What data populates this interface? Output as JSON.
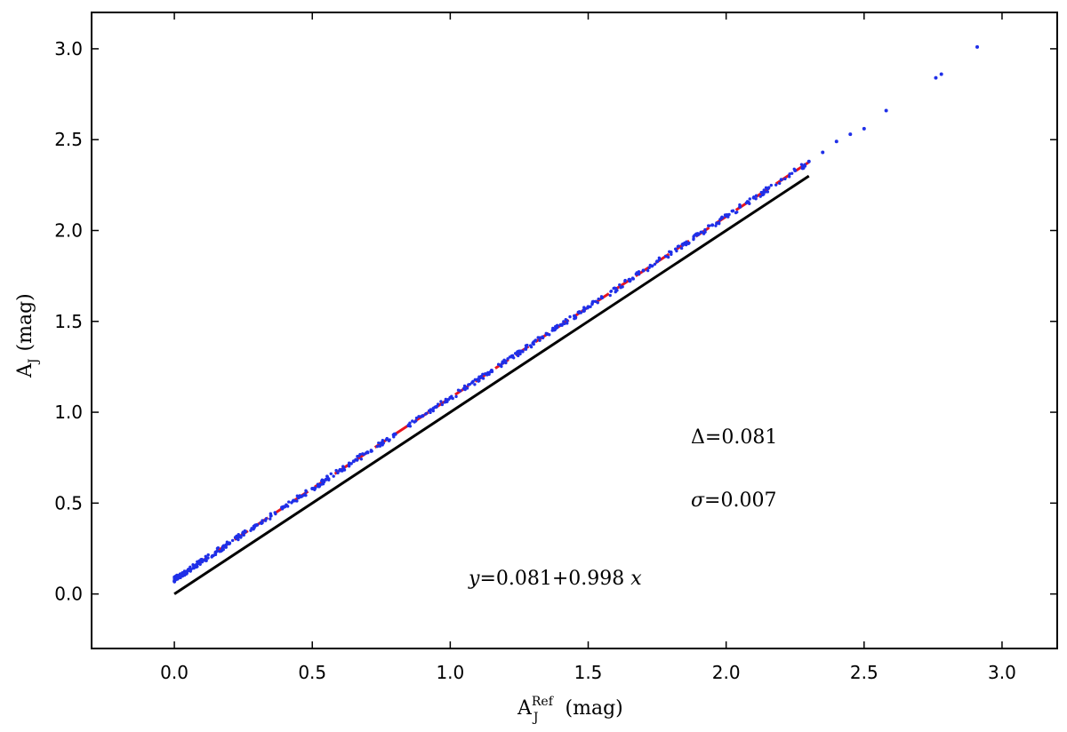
{
  "chart_data": {
    "type": "scatter",
    "title": "",
    "xlabel": {
      "base": "A",
      "sub": "J",
      "sup": "Ref",
      "unit": "(mag)"
    },
    "ylabel": {
      "base": "A",
      "sub": "J",
      "unit": "(mag)"
    },
    "xlim": [
      -0.3,
      3.2
    ],
    "ylim": [
      -0.3,
      3.2
    ],
    "xticks": [
      "0.0",
      "0.5",
      "1.0",
      "1.5",
      "2.0",
      "2.5",
      "3.0"
    ],
    "yticks": [
      "0.0",
      "0.5",
      "1.0",
      "1.5",
      "2.0",
      "2.5",
      "3.0"
    ],
    "grid": false,
    "colors": {
      "points": "#1f2fe8",
      "fit_line": "#e8141e",
      "identity_line": "#000000"
    },
    "series": [
      {
        "kind": "scatter",
        "note_points": [
          [
            0.0,
            0.07
          ],
          [
            0.02,
            0.1
          ],
          [
            0.05,
            0.13
          ],
          [
            0.08,
            0.16
          ],
          [
            0.1,
            0.18
          ],
          [
            0.15,
            0.23
          ],
          [
            0.2,
            0.28
          ],
          [
            0.25,
            0.33
          ],
          [
            0.3,
            0.38
          ],
          [
            0.35,
            0.43
          ],
          [
            0.4,
            0.48
          ],
          [
            0.45,
            0.53
          ],
          [
            0.5,
            0.58
          ],
          [
            0.55,
            0.63
          ],
          [
            0.6,
            0.68
          ],
          [
            0.65,
            0.73
          ],
          [
            0.7,
            0.78
          ],
          [
            0.75,
            0.83
          ],
          [
            0.8,
            0.88
          ],
          [
            0.85,
            0.93
          ],
          [
            0.9,
            0.98
          ],
          [
            0.95,
            1.03
          ],
          [
            1.0,
            1.08
          ],
          [
            1.05,
            1.13
          ],
          [
            1.1,
            1.18
          ],
          [
            1.15,
            1.23
          ],
          [
            1.2,
            1.28
          ],
          [
            1.25,
            1.33
          ],
          [
            1.3,
            1.38
          ],
          [
            1.35,
            1.43
          ],
          [
            1.4,
            1.48
          ],
          [
            1.45,
            1.53
          ],
          [
            1.5,
            1.58
          ],
          [
            1.55,
            1.63
          ],
          [
            1.6,
            1.68
          ],
          [
            1.65,
            1.73
          ],
          [
            1.7,
            1.78
          ],
          [
            1.75,
            1.83
          ],
          [
            1.8,
            1.88
          ],
          [
            1.85,
            1.93
          ],
          [
            1.9,
            1.98
          ],
          [
            1.95,
            2.03
          ],
          [
            2.0,
            2.08
          ],
          [
            2.05,
            2.13
          ],
          [
            2.1,
            2.18
          ],
          [
            2.15,
            2.23
          ],
          [
            2.2,
            2.28
          ],
          [
            2.25,
            2.33
          ],
          [
            2.3,
            2.38
          ],
          [
            2.35,
            2.43
          ],
          [
            2.4,
            2.49
          ],
          [
            2.45,
            2.53
          ],
          [
            2.5,
            2.56
          ],
          [
            2.58,
            2.66
          ],
          [
            2.76,
            2.84
          ],
          [
            2.78,
            2.86
          ],
          [
            2.91,
            3.01
          ]
        ]
      },
      {
        "kind": "line",
        "style": "dashed",
        "intercept": 0.081,
        "slope": 0.998,
        "x_range": [
          0.0,
          2.3
        ]
      },
      {
        "kind": "line",
        "style": "solid",
        "intercept": 0.0,
        "slope": 1.0,
        "x_range": [
          0.0,
          2.3
        ]
      }
    ],
    "annotations": {
      "delta": {
        "symbol": "Δ",
        "eq": "=",
        "value": "0.081"
      },
      "sigma": {
        "symbol": "σ",
        "eq": "=",
        "value": "0.007"
      },
      "fit": {
        "y": "y",
        "eq": "=",
        "a": "0.081",
        "plus": "+",
        "b": "0.998",
        "x": "x"
      }
    }
  }
}
